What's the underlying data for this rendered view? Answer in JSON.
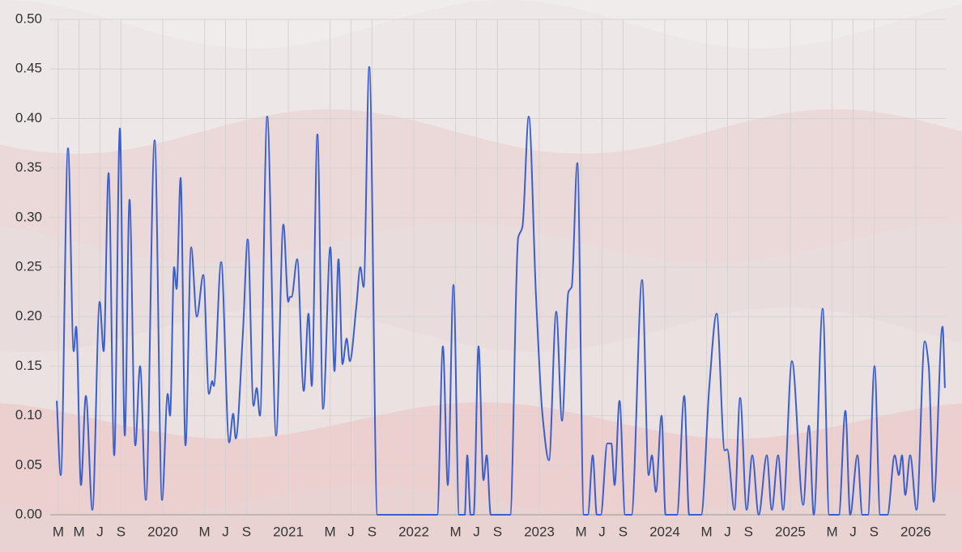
{
  "chart_data": {
    "type": "line",
    "series": [
      {
        "color": "#3a5fcd",
        "x": [
          2019.155,
          2019.187,
          2019.245,
          2019.29,
          2019.31,
          2019.348,
          2019.387,
          2019.439,
          2019.497,
          2019.529,
          2019.568,
          2019.613,
          2019.658,
          2019.697,
          2019.735,
          2019.781,
          2019.819,
          2019.865,
          2019.935,
          2019.994,
          2020.039,
          2020.058,
          2020.09,
          2020.11,
          2020.142,
          2020.181,
          2020.226,
          2020.271,
          2020.323,
          2020.368,
          2020.394,
          2020.406,
          2020.465,
          2020.529,
          2020.561,
          2020.581,
          2020.639,
          2020.677,
          2020.723,
          2020.748,
          2020.774,
          2020.832,
          2020.903,
          2020.961,
          2021.0,
          2021.013,
          2021.026,
          2021.071,
          2021.123,
          2021.161,
          2021.187,
          2021.232,
          2021.277,
          2021.335,
          2021.368,
          2021.4,
          2021.432,
          2021.465,
          2021.49,
          2021.542,
          2021.574,
          2021.6,
          2021.645,
          2021.71,
          2022.187,
          2022.232,
          2022.271,
          2022.316,
          2022.361,
          2022.406,
          2022.426,
          2022.452,
          2022.477,
          2022.516,
          2022.555,
          2022.581,
          2022.613,
          2022.768,
          2022.832,
          2022.865,
          2022.916,
          2022.974,
          2023.026,
          2023.077,
          2023.135,
          2023.181,
          2023.232,
          2023.258,
          2023.303,
          2023.355,
          2023.387,
          2023.426,
          2023.458,
          2023.49,
          2023.542,
          2023.574,
          2023.6,
          2023.639,
          2023.684,
          2023.735,
          2023.819,
          2023.871,
          2023.897,
          2023.929,
          2023.974,
          2024.006,
          2024.097,
          2024.155,
          2024.194,
          2024.29,
          2024.355,
          2024.413,
          2024.477,
          2024.497,
          2024.555,
          2024.6,
          2024.652,
          2024.697,
          2024.748,
          2024.813,
          2024.852,
          2024.903,
          2024.942,
          2025.013,
          2025.103,
          2025.148,
          2025.187,
          2025.258,
          2025.31,
          2025.387,
          2025.439,
          2025.477,
          2025.535,
          2025.574,
          2025.619,
          2025.671,
          2025.716,
          2025.774,
          2025.832,
          2025.865,
          2025.89,
          2025.916,
          2025.955,
          2026.006,
          2026.071,
          2026.103,
          2026.142,
          2026.213,
          2026.232
        ],
        "values": [
          0.115,
          0.04,
          0.37,
          0.165,
          0.19,
          0.03,
          0.12,
          0.005,
          0.215,
          0.165,
          0.345,
          0.06,
          0.39,
          0.08,
          0.318,
          0.07,
          0.15,
          0.015,
          0.378,
          0.015,
          0.122,
          0.1,
          0.25,
          0.228,
          0.34,
          0.07,
          0.27,
          0.2,
          0.242,
          0.122,
          0.135,
          0.13,
          0.255,
          0.073,
          0.102,
          0.077,
          0.185,
          0.278,
          0.11,
          0.128,
          0.1,
          0.402,
          0.08,
          0.293,
          0.215,
          0.22,
          0.22,
          0.258,
          0.125,
          0.203,
          0.13,
          0.384,
          0.107,
          0.27,
          0.145,
          0.258,
          0.152,
          0.178,
          0.155,
          0.21,
          0.25,
          0.23,
          0.452,
          0,
          0,
          0.17,
          0.03,
          0.232,
          0,
          0,
          0.06,
          0,
          0,
          0.17,
          0.035,
          0.06,
          0,
          0,
          0.28,
          0.29,
          0.402,
          0.22,
          0.1,
          0.055,
          0.205,
          0.095,
          0.225,
          0.23,
          0.355,
          0,
          0,
          0.06,
          0,
          0,
          0.072,
          0.072,
          0.03,
          0.115,
          0,
          0,
          0.237,
          0.04,
          0.06,
          0.023,
          0.1,
          0,
          0,
          0.12,
          0,
          0,
          0.13,
          0.203,
          0.065,
          0.066,
          0.005,
          0.118,
          0.005,
          0.06,
          0,
          0.06,
          0.005,
          0.06,
          0.005,
          0.155,
          0.01,
          0.09,
          0,
          0.208,
          0,
          0,
          0.105,
          0,
          0.06,
          0,
          0,
          0.15,
          0,
          0,
          0.06,
          0.04,
          0.06,
          0.02,
          0.06,
          0.005,
          0.175,
          0.15,
          0.013,
          0.19,
          0.128
        ]
      }
    ],
    "xlim": [
      2019.103,
      2026.239
    ],
    "xticks": [
      {
        "value": 2019.167,
        "label": "M"
      },
      {
        "value": 2019.333,
        "label": "M"
      },
      {
        "value": 2019.5,
        "label": "J"
      },
      {
        "value": 2019.667,
        "label": "S"
      },
      2020,
      {
        "value": 2020.333,
        "label": "M"
      },
      {
        "value": 2020.5,
        "label": "J"
      },
      {
        "value": 2020.667,
        "label": "S"
      },
      2021,
      {
        "value": 2021.333,
        "label": "M"
      },
      {
        "value": 2021.5,
        "label": "J"
      },
      {
        "value": 2021.667,
        "label": "S"
      },
      2022,
      {
        "value": 2022.333,
        "label": "M"
      },
      {
        "value": 2022.5,
        "label": "J"
      },
      {
        "value": 2022.667,
        "label": "S"
      },
      2023,
      {
        "value": 2023.333,
        "label": "M"
      },
      {
        "value": 2023.5,
        "label": "J"
      },
      {
        "value": 2023.667,
        "label": "S"
      },
      2024,
      {
        "value": 2024.333,
        "label": "M"
      },
      {
        "value": 2024.5,
        "label": "J"
      },
      {
        "value": 2024.667,
        "label": "S"
      },
      2025,
      {
        "value": 2025.333,
        "label": "M"
      },
      {
        "value": 2025.5,
        "label": "J"
      },
      {
        "value": 2025.667,
        "label": "S"
      },
      2026
    ],
    "ylim": [
      0,
      0.5
    ],
    "yticks": [
      {
        "value": 0,
        "label": "0.00"
      },
      {
        "value": 0.05,
        "label": "0.05"
      },
      {
        "value": 0.1,
        "label": "0.10"
      },
      {
        "value": 0.15,
        "label": "0.15"
      },
      {
        "value": 0.2,
        "label": "0.20"
      },
      {
        "value": 0.25,
        "label": "0.25"
      },
      {
        "value": 0.3,
        "label": "0.30"
      },
      {
        "value": 0.35,
        "label": "0.35"
      },
      {
        "value": 0.4,
        "label": "0.40"
      },
      {
        "value": 0.45,
        "label": "0.45"
      },
      {
        "value": 0.5,
        "label": "0.50"
      }
    ],
    "grid": true
  }
}
